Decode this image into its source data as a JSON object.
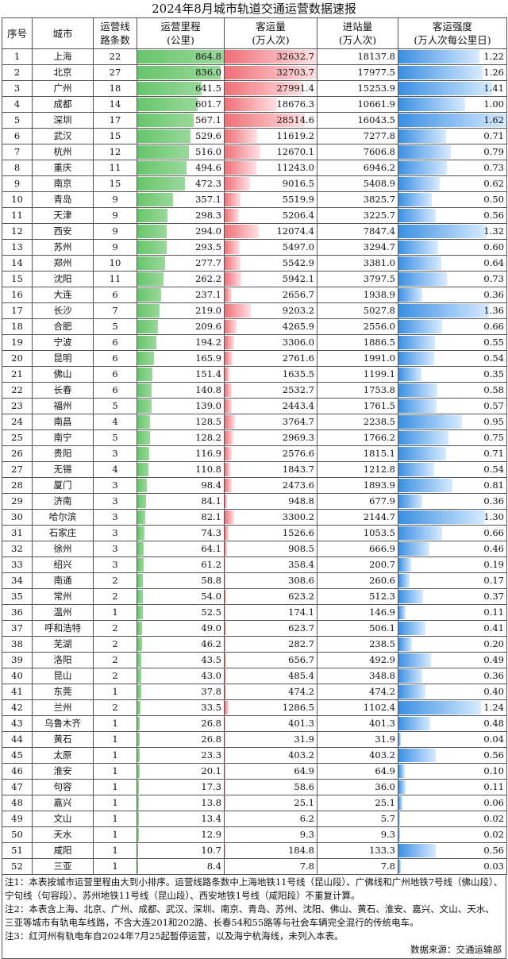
{
  "title": "2024年8月城市轨道交通运营数据速报",
  "headers": {
    "seq": "序号",
    "city": "城市",
    "lines": "运营线\n路条数",
    "mileage": "运营里程\n(公里)",
    "volume": "客运量\n(万人次)",
    "entries": "进站量\n(万人次)",
    "intensity": "客运强度\n(万人次每公里日)"
  },
  "rows": [
    [
      "1",
      "上海",
      "22",
      "864.8",
      "32632.7",
      "18137.8",
      "1.22"
    ],
    [
      "2",
      "北京",
      "27",
      "836.0",
      "32703.7",
      "17977.5",
      "1.26"
    ],
    [
      "3",
      "广州",
      "18",
      "641.5",
      "27991.4",
      "15253.9",
      "1.41"
    ],
    [
      "4",
      "成都",
      "14",
      "601.7",
      "18676.3",
      "10661.9",
      "1.00"
    ],
    [
      "5",
      "深圳",
      "17",
      "567.1",
      "28514.6",
      "16043.5",
      "1.62"
    ],
    [
      "6",
      "武汉",
      "15",
      "529.6",
      "11619.2",
      "7277.8",
      "0.71"
    ],
    [
      "7",
      "杭州",
      "12",
      "516.0",
      "12670.1",
      "7606.8",
      "0.79"
    ],
    [
      "8",
      "重庆",
      "11",
      "494.6",
      "11243.0",
      "6946.2",
      "0.73"
    ],
    [
      "9",
      "南京",
      "15",
      "472.3",
      "9016.5",
      "5408.9",
      "0.62"
    ],
    [
      "10",
      "青岛",
      "9",
      "357.1",
      "5519.9",
      "3825.7",
      "0.50"
    ],
    [
      "11",
      "天津",
      "9",
      "298.3",
      "5206.4",
      "3225.7",
      "0.56"
    ],
    [
      "12",
      "西安",
      "9",
      "294.0",
      "12074.4",
      "7847.4",
      "1.32"
    ],
    [
      "13",
      "苏州",
      "9",
      "293.5",
      "5497.0",
      "3294.7",
      "0.60"
    ],
    [
      "14",
      "郑州",
      "10",
      "277.7",
      "5542.9",
      "3381.0",
      "0.64"
    ],
    [
      "15",
      "沈阳",
      "11",
      "262.2",
      "5942.1",
      "3797.5",
      "0.73"
    ],
    [
      "16",
      "大连",
      "6",
      "237.1",
      "2656.7",
      "1938.9",
      "0.36"
    ],
    [
      "17",
      "长沙",
      "7",
      "219.0",
      "9203.2",
      "5027.8",
      "1.36"
    ],
    [
      "18",
      "合肥",
      "5",
      "209.6",
      "4265.9",
      "2556.0",
      "0.66"
    ],
    [
      "19",
      "宁波",
      "6",
      "194.2",
      "3306.0",
      "1886.5",
      "0.55"
    ],
    [
      "20",
      "昆明",
      "6",
      "165.9",
      "2761.6",
      "1991.0",
      "0.54"
    ],
    [
      "21",
      "佛山",
      "6",
      "151.4",
      "1635.5",
      "1199.1",
      "0.35"
    ],
    [
      "22",
      "长春",
      "6",
      "140.8",
      "2532.7",
      "1753.8",
      "0.58"
    ],
    [
      "23",
      "福州",
      "5",
      "139.0",
      "2443.4",
      "1761.5",
      "0.57"
    ],
    [
      "24",
      "南昌",
      "4",
      "128.5",
      "3764.7",
      "2238.5",
      "0.95"
    ],
    [
      "25",
      "南宁",
      "5",
      "128.2",
      "2969.3",
      "1766.2",
      "0.75"
    ],
    [
      "26",
      "贵阳",
      "3",
      "116.9",
      "2576.6",
      "1815.1",
      "0.71"
    ],
    [
      "27",
      "无锡",
      "4",
      "110.8",
      "1843.7",
      "1212.8",
      "0.54"
    ],
    [
      "28",
      "厦门",
      "3",
      "98.4",
      "2473.6",
      "1893.9",
      "0.81"
    ],
    [
      "29",
      "济南",
      "3",
      "84.1",
      "948.8",
      "677.9",
      "0.36"
    ],
    [
      "30",
      "哈尔滨",
      "3",
      "82.1",
      "3300.2",
      "2144.7",
      "1.30"
    ],
    [
      "31",
      "石家庄",
      "3",
      "74.3",
      "1526.6",
      "1053.5",
      "0.66"
    ],
    [
      "32",
      "徐州",
      "3",
      "64.1",
      "908.5",
      "666.9",
      "0.46"
    ],
    [
      "33",
      "绍兴",
      "3",
      "61.2",
      "358.4",
      "200.7",
      "0.19"
    ],
    [
      "34",
      "南通",
      "2",
      "58.8",
      "308.6",
      "260.6",
      "0.17"
    ],
    [
      "35",
      "常州",
      "2",
      "54.0",
      "623.2",
      "512.3",
      "0.37"
    ],
    [
      "36",
      "温州",
      "1",
      "52.5",
      "174.1",
      "146.9",
      "0.11"
    ],
    [
      "37",
      "呼和浩特",
      "2",
      "49.0",
      "623.7",
      "506.1",
      "0.41"
    ],
    [
      "38",
      "芜湖",
      "2",
      "46.2",
      "282.7",
      "238.5",
      "0.20"
    ],
    [
      "39",
      "洛阳",
      "2",
      "43.5",
      "656.7",
      "492.9",
      "0.49"
    ],
    [
      "40",
      "昆山",
      "2",
      "43.0",
      "485.4",
      "348.8",
      "0.36"
    ],
    [
      "41",
      "东莞",
      "1",
      "37.8",
      "474.2",
      "474.2",
      "0.40"
    ],
    [
      "42",
      "兰州",
      "2",
      "33.5",
      "1286.5",
      "1102.4",
      "1.24"
    ],
    [
      "43",
      "乌鲁木齐",
      "1",
      "26.8",
      "401.3",
      "401.3",
      "0.48"
    ],
    [
      "44",
      "黄石",
      "1",
      "26.8",
      "31.9",
      "31.9",
      "0.04"
    ],
    [
      "45",
      "太原",
      "1",
      "23.3",
      "403.2",
      "403.2",
      "0.56"
    ],
    [
      "46",
      "淮安",
      "1",
      "20.1",
      "64.9",
      "64.9",
      "0.10"
    ],
    [
      "47",
      "句容",
      "1",
      "17.3",
      "58.6",
      "36.0",
      "0.11"
    ],
    [
      "48",
      "嘉兴",
      "1",
      "13.8",
      "25.1",
      "25.1",
      "0.06"
    ],
    [
      "49",
      "文山",
      "1",
      "13.4",
      "6.2",
      "5.7",
      "0.02"
    ],
    [
      "50",
      "天水",
      "1",
      "12.9",
      "9.3",
      "9.3",
      "0.02"
    ],
    [
      "51",
      "咸阳",
      "1",
      "10.7",
      "184.8",
      "133.3",
      "0.56"
    ],
    [
      "52",
      "三亚",
      "1",
      "8.4",
      "7.8",
      "7.8",
      "0.03"
    ]
  ],
  "notes": [
    "注1：本表按城市运营里程由大到小排序。运营线路条数中上海地铁11号线（昆山段）、广佛线和广州地铁7号线（佛山段）、宁句线（句容段）、苏州地铁11号线（昆山段）、西安地铁1号线（咸阳段）不重复计算。",
    "注2：本表含上海、北京、广州、成都、武汉、深圳、南京、青岛、苏州、沈阳、佛山、黄石、淮安、嘉兴、文山、天水、三亚等城市有轨电车线路，不含大连201和202路、长春54和55路等与社会车辆完全混行的传统电车。",
    "注3：红河州有轨电车自2024年7月25起暂停运营，以及海宁杭海线，未列入本表。"
  ],
  "source": "数据来源：交通运输部",
  "colors": {
    "mileage_bar": "#66c66a",
    "volume_bar": "#ee6f78",
    "intensity_bar": "#3a8fe2"
  }
}
